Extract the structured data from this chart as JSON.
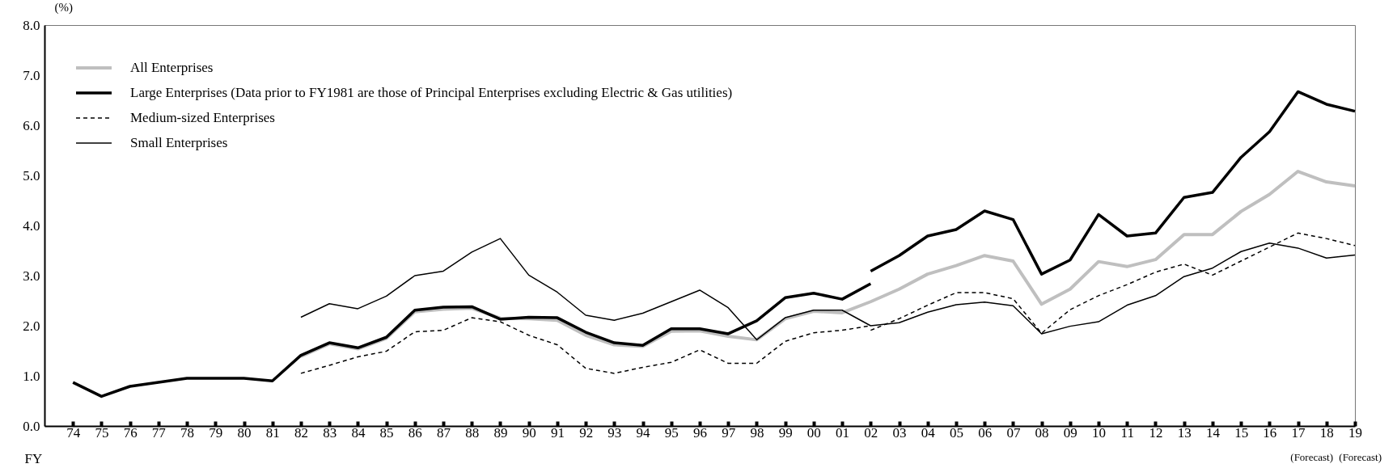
{
  "chart_data": {
    "type": "line",
    "ylabel": "(%)",
    "xlabel": "FY",
    "legend": "top left",
    "categories": [
      "74",
      "75",
      "76",
      "77",
      "78",
      "79",
      "80",
      "81",
      "82",
      "83",
      "84",
      "85",
      "86",
      "87",
      "88",
      "89",
      "90",
      "91",
      "92",
      "93",
      "94",
      "95",
      "96",
      "97",
      "98",
      "99",
      "00",
      "01",
      "02",
      "03",
      "04",
      "05",
      "06",
      "07",
      "08",
      "09",
      "10",
      "11",
      "12",
      "13",
      "14",
      "15",
      "16",
      "17",
      "18",
      "19"
    ],
    "ylim": [
      0,
      8
    ],
    "yticks": [
      {
        "value": 0,
        "label": "0.0"
      },
      {
        "value": 1,
        "label": "1.0"
      },
      {
        "value": 2,
        "label": "2.0"
      },
      {
        "value": 3,
        "label": "3.0"
      },
      {
        "value": 4,
        "label": "4.0"
      },
      {
        "value": 5,
        "label": "5.0"
      },
      {
        "value": 6,
        "label": "6.0"
      },
      {
        "value": 7,
        "label": "7.0"
      },
      {
        "value": 8,
        "label": "8.0"
      }
    ],
    "annotations": [
      "(Forecast)",
      "(Forecast)"
    ],
    "series": [
      {
        "name": "All Enterprises",
        "color": "#bfbfbf",
        "line_style": "solid",
        "values": [
          null,
          null,
          null,
          null,
          null,
          null,
          null,
          null,
          1.39,
          1.64,
          1.54,
          1.75,
          2.28,
          2.33,
          2.35,
          2.15,
          2.14,
          2.11,
          1.81,
          1.62,
          1.59,
          1.89,
          1.9,
          1.79,
          1.72,
          2.14,
          2.29,
          2.26,
          2.48,
          2.73,
          3.03,
          3.2,
          3.4,
          3.29,
          2.43,
          2.73,
          3.28,
          3.18,
          3.32,
          3.82,
          3.82,
          4.28,
          4.62,
          5.08,
          4.87,
          4.79
        ]
      },
      {
        "name": "Large Enterprises (Data prior to FY1981 are those of Principal Enterprises excluding Electric & Gas utilities)",
        "color": "#000000",
        "line_style": "solid",
        "values": [
          0.87,
          0.59,
          0.79,
          0.87,
          0.95,
          0.95,
          0.95,
          0.9,
          1.41,
          1.66,
          1.56,
          1.77,
          2.31,
          2.37,
          2.38,
          2.13,
          2.17,
          2.16,
          1.87,
          1.66,
          1.61,
          1.94,
          1.94,
          1.84,
          2.1,
          2.56,
          2.65,
          2.53,
          2.84,
          null,
          null,
          null,
          null,
          null,
          null,
          null,
          null,
          null,
          null,
          null,
          null,
          null,
          null,
          null,
          null,
          null
        ]
      },
      {
        "name": "Medium-sized Enterprises",
        "color": "#000000",
        "line_style": "dashed",
        "values": [
          null,
          null,
          null,
          null,
          null,
          null,
          null,
          null,
          1.05,
          1.21,
          1.38,
          1.49,
          1.88,
          1.91,
          2.16,
          2.08,
          1.81,
          1.62,
          1.15,
          1.05,
          1.17,
          1.27,
          1.52,
          1.25,
          1.25,
          1.69,
          1.86,
          1.91,
          2.0,
          null,
          null,
          null,
          null,
          null,
          null,
          null,
          null,
          null,
          null,
          null,
          null,
          null,
          null,
          null,
          null,
          null
        ]
      },
      {
        "name": "Small Enterprises",
        "color": "#000000",
        "line_style": "solid",
        "values": [
          null,
          null,
          null,
          null,
          null,
          null,
          null,
          null,
          2.17,
          2.44,
          2.34,
          2.59,
          3.0,
          3.09,
          3.47,
          3.74,
          3.01,
          2.67,
          2.21,
          2.11,
          2.25,
          2.48,
          2.71,
          2.36,
          1.72,
          2.16,
          2.31,
          2.31,
          2.0,
          2.06,
          2.27,
          2.42,
          2.47,
          2.4,
          1.84,
          1.99,
          2.08,
          2.41,
          2.6,
          2.98,
          3.15,
          3.48,
          3.65,
          3.55,
          3.35,
          3.41
        ]
      },
      {
        "color": "#000000",
        "line_style": "solid",
        "values": [
          null,
          null,
          null,
          null,
          null,
          null,
          null,
          null,
          null,
          null,
          null,
          null,
          null,
          null,
          null,
          null,
          null,
          null,
          null,
          null,
          null,
          null,
          null,
          null,
          null,
          null,
          null,
          null,
          3.09,
          3.4,
          3.79,
          3.92,
          4.29,
          4.12,
          3.03,
          3.31,
          4.22,
          3.79,
          3.85,
          4.56,
          4.66,
          5.36,
          5.87,
          6.67,
          6.42,
          6.28
        ]
      },
      {
        "color": "#000000",
        "line_style": "dashed",
        "values": [
          null,
          null,
          null,
          null,
          null,
          null,
          null,
          null,
          null,
          null,
          null,
          null,
          null,
          null,
          null,
          null,
          null,
          null,
          null,
          null,
          null,
          null,
          null,
          null,
          null,
          null,
          null,
          null,
          1.91,
          2.14,
          2.41,
          2.66,
          2.66,
          2.54,
          1.85,
          2.32,
          2.6,
          2.82,
          3.07,
          3.23,
          3.01,
          3.29,
          3.57,
          3.85,
          3.74,
          3.6
        ]
      }
    ]
  }
}
